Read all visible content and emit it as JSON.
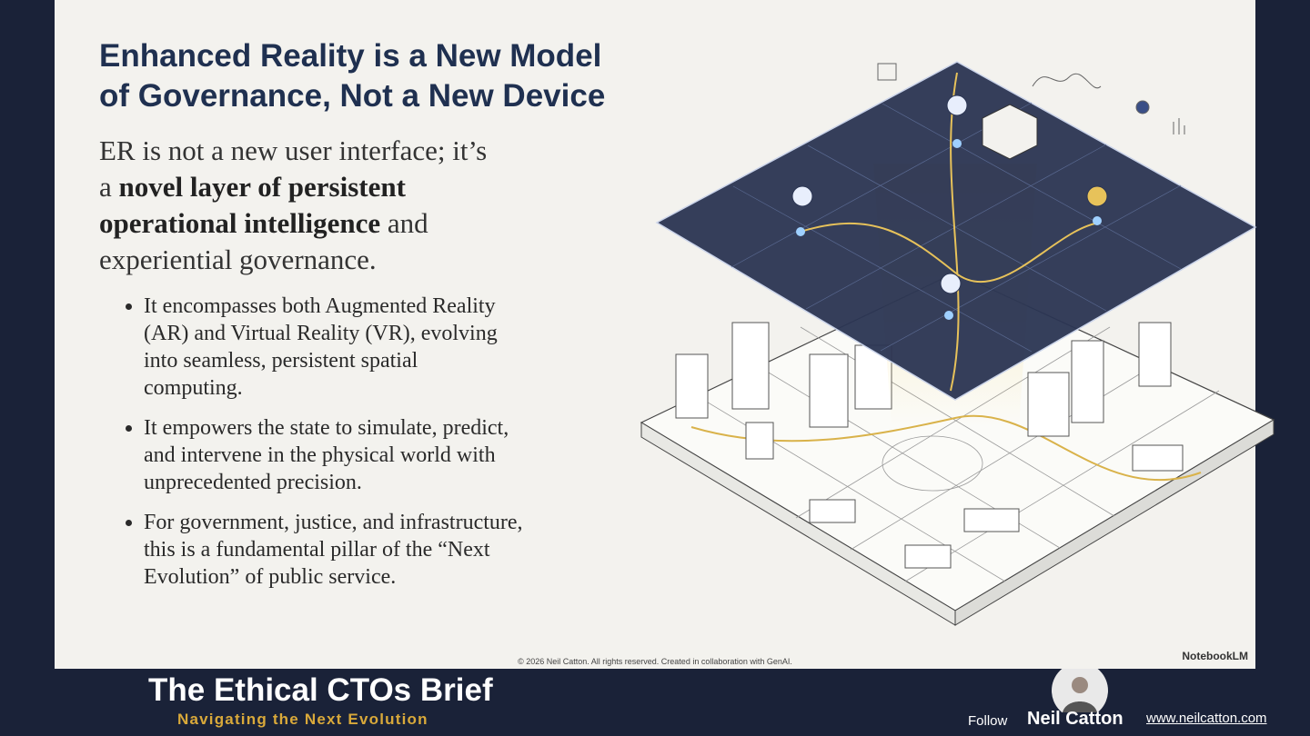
{
  "slide": {
    "title": [
      "Enhanced Reality is a New Model",
      "of Governance, Not a New Device"
    ],
    "lead": [
      {
        "text": "ER is not a new user interface; it’s a ",
        "bold": false
      },
      {
        "text": "novel layer of persistent operational intelligence",
        "bold": true
      },
      {
        "text": " and experiential governance.",
        "bold": false
      }
    ],
    "bullets": [
      "It encompasses both Augmented Reality (AR) and Virtual Reality (VR), evolving into seamless, persistent spatial computing.",
      "It empowers the state to simulate, predict, and intervene in the physical world with unprecedented precision.",
      "For government, justice, and infrastructure, this is a fundamental pillar of the “Next Evolution” of public service."
    ],
    "copyright": "© 2026 Neil Catton. All rights reserved. Created in collaboration with GenAI.",
    "brand": "NotebookLM"
  },
  "footer": {
    "show_title": "The Ethical CTOs Brief",
    "show_subtitle": "Navigating the Next Evolution",
    "follow": "Follow",
    "name": "Neil Catton",
    "url": "www.neilcatton.com"
  }
}
